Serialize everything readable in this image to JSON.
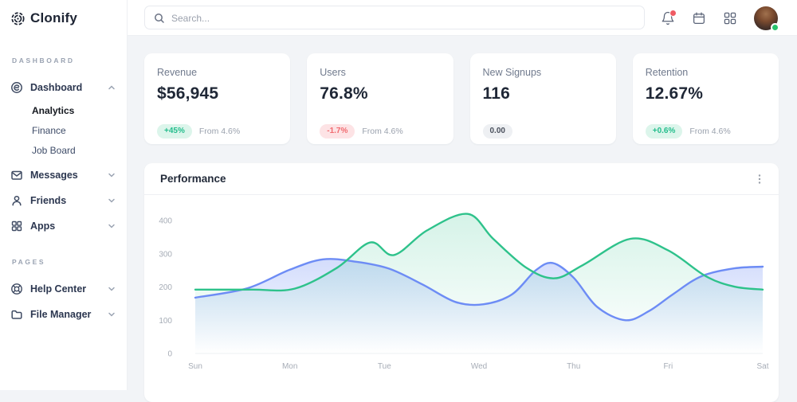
{
  "brand": {
    "name": "Clonify"
  },
  "sidebar": {
    "sections": [
      {
        "label": "DASHBOARD",
        "items": [
          {
            "label": "Dashboard",
            "icon": "dashboard-icon",
            "expanded": true,
            "children": [
              {
                "label": "Analytics",
                "active": true
              },
              {
                "label": "Finance",
                "active": false
              },
              {
                "label": "Job Board",
                "active": false
              }
            ]
          },
          {
            "label": "Messages",
            "icon": "envelope-icon",
            "expanded": false
          },
          {
            "label": "Friends",
            "icon": "user-icon",
            "expanded": false
          },
          {
            "label": "Apps",
            "icon": "apps-icon",
            "expanded": false
          }
        ]
      },
      {
        "label": "PAGES",
        "items": [
          {
            "label": "Help Center",
            "icon": "lifebuoy-icon",
            "expanded": false
          },
          {
            "label": "File Manager",
            "icon": "folder-icon",
            "expanded": false
          }
        ]
      }
    ]
  },
  "topbar": {
    "search_placeholder": "Search...",
    "notification_dot": true,
    "avatar_online": true
  },
  "stats": [
    {
      "title": "Revenue",
      "value": "$56,945",
      "badge": "+45%",
      "badge_type": "positive",
      "note": "From 4.6%"
    },
    {
      "title": "Users",
      "value": "76.8%",
      "badge": "-1.7%",
      "badge_type": "negative",
      "note": "From 4.6%"
    },
    {
      "title": "New Signups",
      "value": "116",
      "badge": "0.00",
      "badge_type": "neutral",
      "note": ""
    },
    {
      "title": "Retention",
      "value": "12.67%",
      "badge": "+0.6%",
      "badge_type": "positive",
      "note": "From 4.6%"
    }
  ],
  "performance": {
    "title": "Performance"
  },
  "chart_data": {
    "type": "area",
    "title": "Performance",
    "x_tick_labels": [
      "Sun",
      "Mon",
      "Tue",
      "Wed",
      "Thu",
      "Fri",
      "Sat"
    ],
    "y_ticks": [
      0,
      100,
      200,
      300,
      400
    ],
    "ylim": [
      0,
      440
    ],
    "grid": false,
    "legend": false,
    "series": [
      {
        "name": "green-series",
        "color": "#2ec28b",
        "fill_opacity": 0.2,
        "points": [
          [
            0,
            192
          ],
          [
            0.6,
            192
          ],
          [
            1.05,
            195
          ],
          [
            1.5,
            258
          ],
          [
            1.85,
            334
          ],
          [
            2.1,
            296
          ],
          [
            2.45,
            370
          ],
          [
            2.88,
            420
          ],
          [
            3.15,
            345
          ],
          [
            3.5,
            258
          ],
          [
            3.8,
            226
          ],
          [
            4.1,
            266
          ],
          [
            4.6,
            345
          ],
          [
            5,
            310
          ],
          [
            5.4,
            232
          ],
          [
            5.7,
            201
          ],
          [
            6,
            192
          ]
        ],
        "values_at_days": {
          "Sun": 192,
          "Mon": 195,
          "Tue": 305,
          "Wed": 395,
          "Thu": 253,
          "Fri": 310,
          "Sat": 192
        }
      },
      {
        "name": "blue-series",
        "color": "#6d8cf5",
        "fill_opacity": 0.3,
        "points": [
          [
            0,
            168
          ],
          [
            0.55,
            196
          ],
          [
            1,
            252
          ],
          [
            1.35,
            283
          ],
          [
            1.7,
            276
          ],
          [
            2.05,
            255
          ],
          [
            2.4,
            208
          ],
          [
            2.75,
            155
          ],
          [
            3.05,
            148
          ],
          [
            3.35,
            178
          ],
          [
            3.6,
            250
          ],
          [
            3.78,
            272
          ],
          [
            4,
            228
          ],
          [
            4.25,
            140
          ],
          [
            4.55,
            100
          ],
          [
            4.8,
            128
          ],
          [
            5.05,
            178
          ],
          [
            5.35,
            232
          ],
          [
            5.7,
            256
          ],
          [
            6,
            261
          ]
        ],
        "values_at_days": {
          "Sun": 168,
          "Mon": 252,
          "Tue": 257,
          "Wed": 148,
          "Thu": 228,
          "Fri": 178,
          "Sat": 261
        }
      }
    ]
  },
  "colors": {
    "page_bg": "#f2f4f7",
    "card_bg": "#ffffff",
    "accent_green": "#2ec28b",
    "accent_blue": "#6d8cf5",
    "badge_positive_bg": "#dcf5eb",
    "badge_positive_text": "#23bd8c",
    "badge_negative_bg": "#fde3e5",
    "badge_negative_text": "#f16a6f",
    "badge_neutral_bg": "#eef0f3",
    "badge_neutral_text": "#4a505c",
    "notification_dot": "#ef5b64",
    "online_dot": "#27c26c"
  }
}
